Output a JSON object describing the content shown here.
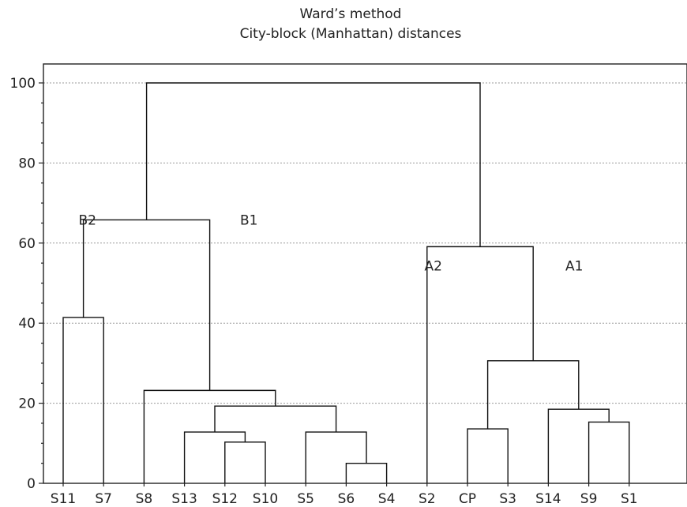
{
  "chart_data": {
    "type": "dendrogram",
    "title": "Ward’s method",
    "subtitle": "City-block (Manhattan) distances",
    "xlabel": "",
    "ylabel": "",
    "ylim": [
      0,
      105
    ],
    "yticks": [
      0,
      20,
      40,
      60,
      80,
      100
    ],
    "grid": true,
    "leaves": [
      "S11",
      "S7",
      "S8",
      "S13",
      "S12",
      "S10",
      "S5",
      "S6",
      "S4",
      "S2",
      "CP",
      "S3",
      "S14",
      "S9",
      "S1"
    ],
    "merges": [
      {
        "left": "S6",
        "right": "S4",
        "height": 5
      },
      {
        "left": "S12",
        "right": "S10",
        "height": 10.3
      },
      {
        "left": "S13",
        "right": "S12+S10",
        "height": 12.8
      },
      {
        "left": "S5",
        "right": "S6+S4",
        "height": 12.8
      },
      {
        "left": "CP",
        "right": "S3",
        "height": 13.6
      },
      {
        "left": "S9",
        "right": "S1",
        "height": 15.3
      },
      {
        "left": "S14",
        "right": "S9+S1",
        "height": 18.5
      },
      {
        "left": "S13..S10",
        "right": "S5..S4",
        "height": 19.3
      },
      {
        "left": "S8",
        "right": "S13..S4",
        "height": 23.2
      },
      {
        "left": "CP+S3",
        "right": "S14..S1",
        "height": 30.6
      },
      {
        "left": "S11",
        "right": "S7",
        "height": 41.4
      },
      {
        "left": "S2",
        "right": "CP..S1",
        "height": 59.1
      },
      {
        "left": "S11+S7",
        "right": "S8..S4",
        "height": 65.8
      },
      {
        "left": "S11..S4",
        "right": "S2..S1",
        "height": 100
      }
    ],
    "annotations": [
      {
        "text": "B2",
        "height": 65.8
      },
      {
        "text": "B1",
        "height": 65.8
      },
      {
        "text": "A2",
        "height": 59.1
      },
      {
        "text": "A1",
        "height": 59.1
      }
    ]
  }
}
